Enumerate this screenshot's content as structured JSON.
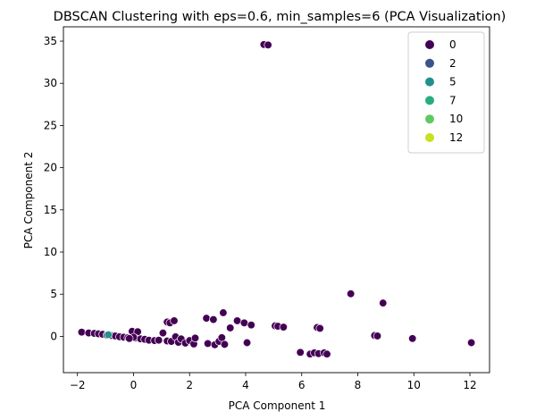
{
  "chart_data": {
    "type": "scatter",
    "title": "DBSCAN Clustering with eps=0.6, min_samples=6 (PCA Visualization)",
    "xlabel": "PCA Component 1",
    "ylabel": "PCA Component 2",
    "xlim": [
      -2.5,
      12.7
    ],
    "ylim": [
      -4.3,
      36.7
    ],
    "xticks": [
      -2,
      0,
      2,
      4,
      6,
      8,
      10,
      12
    ],
    "yticks": [
      0,
      5,
      10,
      15,
      20,
      25,
      30,
      35
    ],
    "grid": false,
    "legend": {
      "placement": "top-right",
      "entries": [
        {
          "label": "0",
          "color": "#440154"
        },
        {
          "label": "2",
          "color": "#3b528b"
        },
        {
          "label": "5",
          "color": "#21918c"
        },
        {
          "label": "7",
          "color": "#27ad81"
        },
        {
          "label": "10",
          "color": "#5ec962"
        },
        {
          "label": "12",
          "color": "#c8e020"
        }
      ]
    },
    "series": [
      {
        "name": "0",
        "color": "#440154",
        "points": [
          [
            4.65,
            34.6
          ],
          [
            4.8,
            34.55
          ],
          [
            -1.85,
            0.5
          ],
          [
            -1.6,
            0.4
          ],
          [
            -1.4,
            0.35
          ],
          [
            -1.25,
            0.3
          ],
          [
            -1.1,
            0.25
          ],
          [
            -0.95,
            0.15
          ],
          [
            -0.8,
            0.1
          ],
          [
            -0.65,
            0.05
          ],
          [
            -0.5,
            -0.05
          ],
          [
            -0.35,
            -0.1
          ],
          [
            -0.2,
            -0.15
          ],
          [
            -0.05,
            0.6
          ],
          [
            0.15,
            0.55
          ],
          [
            0.05,
            -0.2
          ],
          [
            0.25,
            -0.3
          ],
          [
            0.4,
            -0.35
          ],
          [
            0.55,
            -0.45
          ],
          [
            0.75,
            -0.5
          ],
          [
            0.9,
            -0.45
          ],
          [
            1.05,
            0.4
          ],
          [
            1.2,
            -0.55
          ],
          [
            1.35,
            -0.6
          ],
          [
            1.5,
            -0.05
          ],
          [
            1.6,
            -0.7
          ],
          [
            1.7,
            -0.3
          ],
          [
            1.85,
            -0.8
          ],
          [
            2.0,
            -0.5
          ],
          [
            2.15,
            -0.9
          ],
          [
            2.2,
            -0.2
          ],
          [
            1.2,
            1.7
          ],
          [
            1.3,
            1.6
          ],
          [
            1.45,
            1.85
          ],
          [
            2.6,
            2.15
          ],
          [
            2.85,
            2.0
          ],
          [
            3.2,
            2.8
          ],
          [
            2.65,
            -0.85
          ],
          [
            2.9,
            -1.0
          ],
          [
            3.05,
            -0.6
          ],
          [
            3.15,
            -0.15
          ],
          [
            3.25,
            -0.95
          ],
          [
            3.45,
            1.0
          ],
          [
            3.7,
            1.85
          ],
          [
            3.95,
            1.6
          ],
          [
            4.05,
            -0.75
          ],
          [
            4.2,
            1.35
          ],
          [
            5.05,
            1.25
          ],
          [
            5.15,
            1.2
          ],
          [
            5.35,
            1.1
          ],
          [
            5.95,
            -1.9
          ],
          [
            6.3,
            -2.1
          ],
          [
            6.45,
            -1.95
          ],
          [
            6.6,
            -2.05
          ],
          [
            6.8,
            -1.95
          ],
          [
            6.9,
            -2.1
          ],
          [
            6.55,
            1.05
          ],
          [
            6.65,
            0.95
          ],
          [
            7.75,
            5.05
          ],
          [
            8.9,
            3.95
          ],
          [
            8.6,
            0.1
          ],
          [
            8.7,
            0.05
          ],
          [
            9.95,
            -0.25
          ],
          [
            12.05,
            -0.75
          ],
          [
            0.0,
            -0.1
          ],
          [
            -0.15,
            -0.25
          ]
        ]
      },
      {
        "name": "5",
        "color": "#21918c",
        "points": [
          [
            -0.9,
            0.2
          ]
        ]
      }
    ]
  }
}
